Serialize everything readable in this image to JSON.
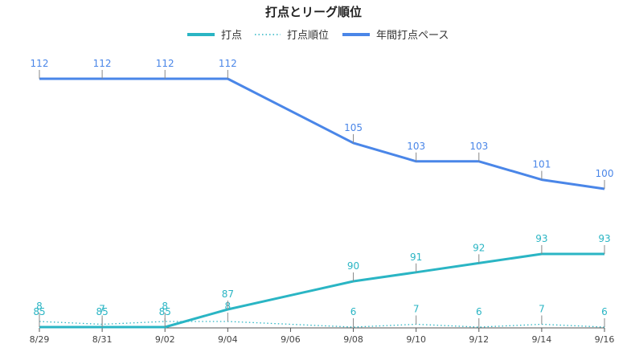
{
  "chart_data": {
    "type": "line",
    "title": "打点とリーグ順位",
    "x": [
      "8/29",
      "8/31",
      "9/02",
      "9/04",
      "9/06",
      "9/08",
      "9/10",
      "9/12",
      "9/14",
      "9/16"
    ],
    "legend_position": "top-center",
    "series": [
      {
        "name": "打点",
        "style": "solid",
        "color": "#2ab5c4",
        "points": [
          {
            "x": "8/29",
            "y": 85
          },
          {
            "x": "8/31",
            "y": 85
          },
          {
            "x": "9/02",
            "y": 85
          },
          {
            "x": "9/04",
            "y": 87
          },
          {
            "x": "9/08",
            "y": 90
          },
          {
            "x": "9/10",
            "y": 91
          },
          {
            "x": "9/12",
            "y": 92
          },
          {
            "x": "9/14",
            "y": 93
          },
          {
            "x": "9/16",
            "y": 93
          }
        ]
      },
      {
        "name": "打点順位",
        "style": "dotted",
        "color": "#2ab5c4",
        "points": [
          {
            "x": "8/29",
            "y": 8
          },
          {
            "x": "8/31",
            "y": 7
          },
          {
            "x": "9/02",
            "y": 8
          },
          {
            "x": "9/04",
            "y": 8
          },
          {
            "x": "9/08",
            "y": 6
          },
          {
            "x": "9/10",
            "y": 7
          },
          {
            "x": "9/12",
            "y": 6
          },
          {
            "x": "9/14",
            "y": 7
          },
          {
            "x": "9/16",
            "y": 6
          }
        ]
      },
      {
        "name": "年間打点ペース",
        "style": "solid",
        "color": "#4a86e8",
        "points": [
          {
            "x": "8/29",
            "y": 112
          },
          {
            "x": "8/31",
            "y": 112
          },
          {
            "x": "9/02",
            "y": 112
          },
          {
            "x": "9/04",
            "y": 112
          },
          {
            "x": "9/08",
            "y": 105
          },
          {
            "x": "9/10",
            "y": 103
          },
          {
            "x": "9/12",
            "y": 103
          },
          {
            "x": "9/14",
            "y": 101
          },
          {
            "x": "9/16",
            "y": 100
          }
        ]
      }
    ]
  }
}
